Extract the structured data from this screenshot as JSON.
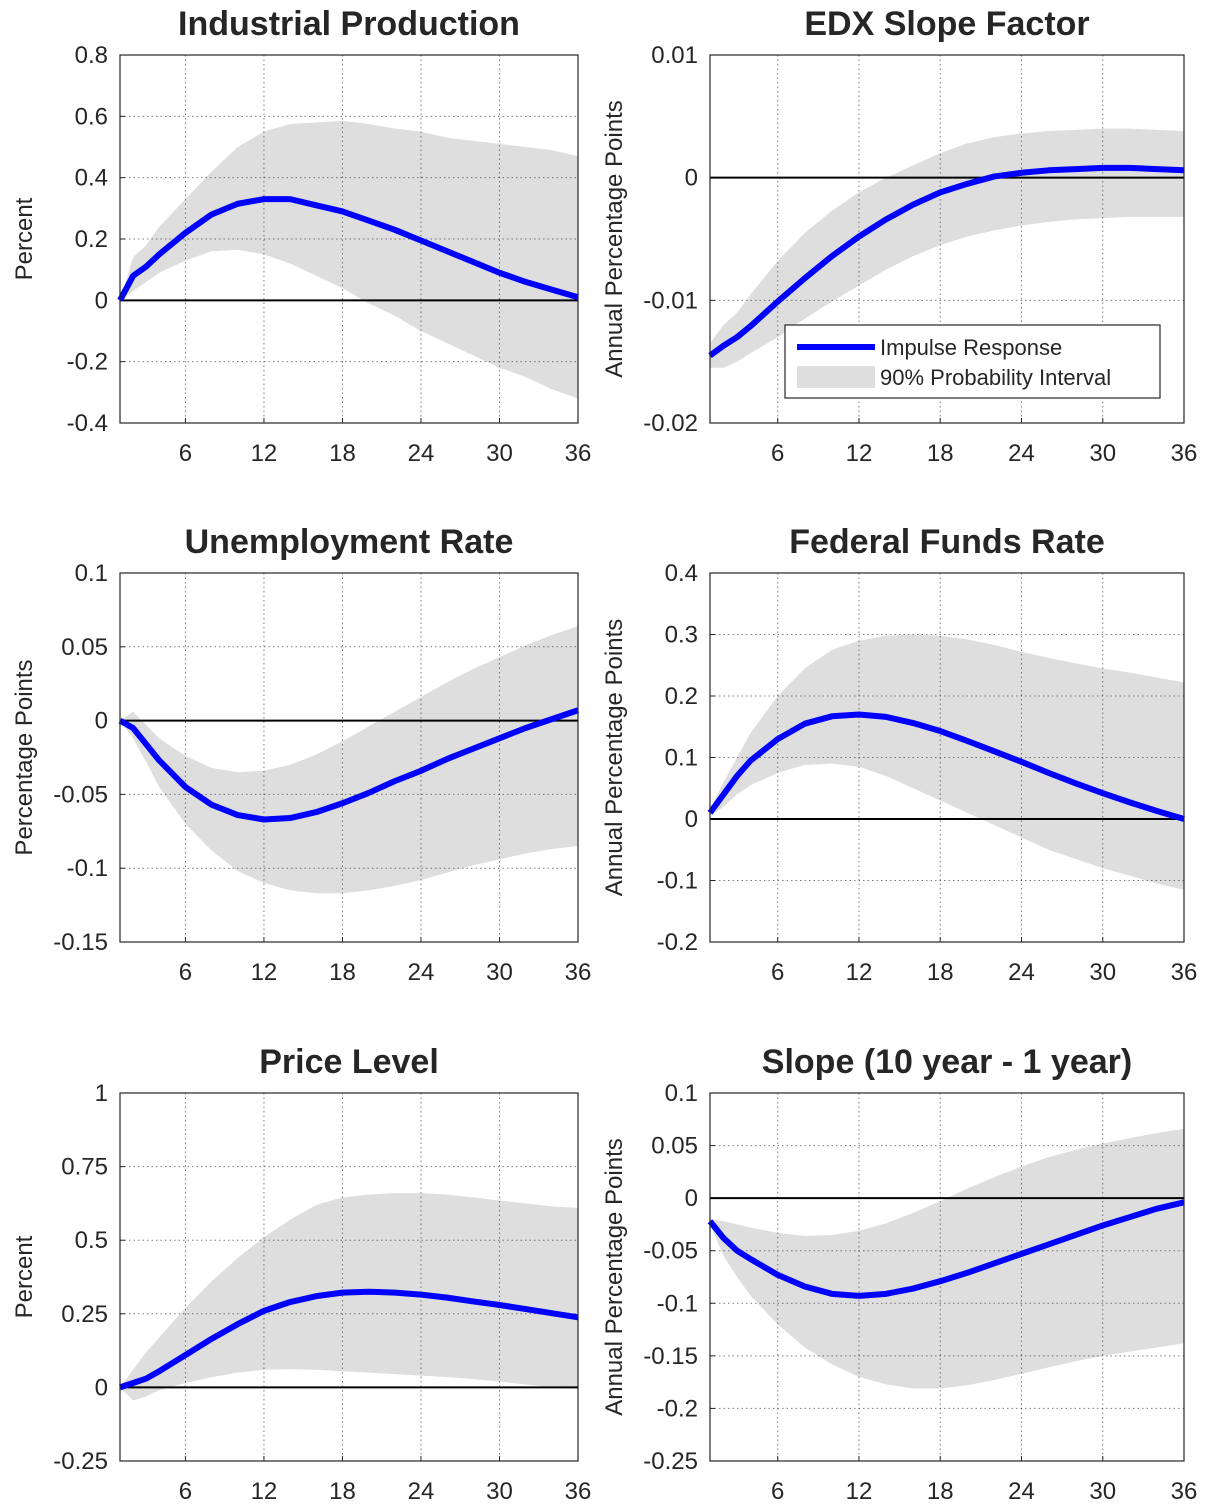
{
  "chart_data": [
    {
      "type": "line",
      "title": "Industrial Production",
      "ylabel": "Percent",
      "x": [
        1,
        2,
        3,
        4,
        6,
        8,
        10,
        12,
        14,
        16,
        18,
        20,
        22,
        24,
        26,
        28,
        30,
        32,
        34,
        36
      ],
      "xlim": [
        1,
        36
      ],
      "xticks": [
        6,
        12,
        18,
        24,
        30,
        36
      ],
      "ylim": [
        -0.4,
        0.8
      ],
      "yticks": [
        -0.4,
        -0.2,
        0,
        0.2,
        0.4,
        0.6,
        0.8
      ],
      "grid": true,
      "hline": 0,
      "band": {
        "color": "#dedede",
        "upper": [
          0,
          0.14,
          0.18,
          0.24,
          0.33,
          0.42,
          0.5,
          0.55,
          0.575,
          0.58,
          0.585,
          0.575,
          0.56,
          0.55,
          0.53,
          0.52,
          0.51,
          0.5,
          0.49,
          0.47
        ],
        "lower": [
          0,
          0.03,
          0.06,
          0.09,
          0.13,
          0.16,
          0.165,
          0.15,
          0.12,
          0.08,
          0.04,
          -0.01,
          -0.05,
          -0.1,
          -0.14,
          -0.18,
          -0.22,
          -0.25,
          -0.29,
          -0.32
        ]
      },
      "series": [
        {
          "color": "#0000ff",
          "values": [
            0,
            0.08,
            0.11,
            0.15,
            0.22,
            0.28,
            0.315,
            0.33,
            0.33,
            0.31,
            0.29,
            0.26,
            0.23,
            0.195,
            0.16,
            0.125,
            0.09,
            0.06,
            0.035,
            0.01
          ]
        }
      ]
    },
    {
      "type": "line",
      "title": "EDX Slope Factor",
      "ylabel": "Annual Percentage Points",
      "x": [
        1,
        2,
        3,
        4,
        6,
        8,
        10,
        12,
        14,
        16,
        18,
        20,
        22,
        24,
        26,
        28,
        30,
        32,
        34,
        36
      ],
      "xlim": [
        1,
        36
      ],
      "xticks": [
        6,
        12,
        18,
        24,
        30,
        36
      ],
      "ylim": [
        -0.02,
        0.01
      ],
      "yticks": [
        -0.02,
        -0.01,
        0,
        0.01
      ],
      "grid": true,
      "hline": 0,
      "legend": "lower right",
      "band": {
        "name": "90% Probability Interval",
        "color": "#dedede",
        "upper": [
          -0.0135,
          -0.012,
          -0.011,
          -0.0095,
          -0.0068,
          -0.0045,
          -0.0027,
          -0.0012,
          0,
          0.001,
          0.002,
          0.0028,
          0.0033,
          0.0036,
          0.0038,
          0.0039,
          0.004,
          0.004,
          0.0039,
          0.0038
        ],
        "lower": [
          -0.0155,
          -0.0155,
          -0.015,
          -0.0143,
          -0.013,
          -0.0115,
          -0.0101,
          -0.0088,
          -0.0075,
          -0.0064,
          -0.0055,
          -0.0048,
          -0.0043,
          -0.0039,
          -0.0036,
          -0.0034,
          -0.0033,
          -0.0032,
          -0.0032,
          -0.0032
        ]
      },
      "series": [
        {
          "name": "Impulse Response",
          "color": "#0000ff",
          "values": [
            -0.0145,
            -0.0137,
            -0.013,
            -0.0121,
            -0.0101,
            -0.0082,
            -0.0064,
            -0.0048,
            -0.0034,
            -0.0022,
            -0.0012,
            -0.0005,
            0.0001,
            0.0004,
            0.0006,
            0.0007,
            0.0008,
            0.0008,
            0.0007,
            0.0006
          ]
        }
      ]
    },
    {
      "type": "line",
      "title": "Unemployment Rate",
      "ylabel": "Percentage Points",
      "x": [
        1,
        2,
        3,
        4,
        6,
        8,
        10,
        12,
        14,
        16,
        18,
        20,
        22,
        24,
        26,
        28,
        30,
        32,
        34,
        36
      ],
      "xlim": [
        1,
        36
      ],
      "xticks": [
        6,
        12,
        18,
        24,
        30,
        36
      ],
      "ylim": [
        -0.15,
        0.1
      ],
      "yticks": [
        -0.15,
        -0.1,
        -0.05,
        0,
        0.05,
        0.1
      ],
      "grid": true,
      "hline": 0,
      "band": {
        "color": "#dedede",
        "upper": [
          0,
          0.006,
          -0.003,
          -0.012,
          -0.024,
          -0.032,
          -0.035,
          -0.034,
          -0.03,
          -0.023,
          -0.014,
          -0.004,
          0.006,
          0.016,
          0.026,
          0.035,
          0.043,
          0.051,
          0.058,
          0.064
        ],
        "lower": [
          0,
          -0.012,
          -0.028,
          -0.045,
          -0.07,
          -0.088,
          -0.102,
          -0.11,
          -0.115,
          -0.117,
          -0.117,
          -0.115,
          -0.112,
          -0.108,
          -0.103,
          -0.098,
          -0.094,
          -0.09,
          -0.087,
          -0.085
        ]
      },
      "series": [
        {
          "color": "#0000ff",
          "values": [
            0,
            -0.005,
            -0.016,
            -0.027,
            -0.045,
            -0.057,
            -0.064,
            -0.067,
            -0.066,
            -0.062,
            -0.056,
            -0.049,
            -0.041,
            -0.034,
            -0.026,
            -0.019,
            -0.012,
            -0.005,
            0.001,
            0.007
          ]
        }
      ]
    },
    {
      "type": "line",
      "title": "Federal Funds Rate",
      "ylabel": "Annual Percentage Points",
      "x": [
        1,
        2,
        3,
        4,
        6,
        8,
        10,
        12,
        14,
        16,
        18,
        20,
        22,
        24,
        26,
        28,
        30,
        32,
        34,
        36
      ],
      "xlim": [
        1,
        36
      ],
      "xticks": [
        6,
        12,
        18,
        24,
        30,
        36
      ],
      "ylim": [
        -0.2,
        0.4
      ],
      "yticks": [
        -0.2,
        -0.1,
        0,
        0.1,
        0.2,
        0.3,
        0.4
      ],
      "grid": true,
      "hline": 0,
      "band": {
        "color": "#dedede",
        "upper": [
          0.015,
          0.06,
          0.1,
          0.14,
          0.2,
          0.245,
          0.275,
          0.29,
          0.298,
          0.3,
          0.298,
          0.292,
          0.283,
          0.272,
          0.262,
          0.253,
          0.245,
          0.238,
          0.23,
          0.222
        ],
        "lower": [
          0.005,
          0.02,
          0.04,
          0.055,
          0.075,
          0.088,
          0.09,
          0.085,
          0.07,
          0.05,
          0.03,
          0.01,
          -0.01,
          -0.03,
          -0.05,
          -0.065,
          -0.08,
          -0.092,
          -0.105,
          -0.115
        ]
      },
      "series": [
        {
          "color": "#0000ff",
          "values": [
            0.01,
            0.04,
            0.07,
            0.095,
            0.13,
            0.155,
            0.167,
            0.17,
            0.166,
            0.156,
            0.143,
            0.127,
            0.11,
            0.093,
            0.075,
            0.058,
            0.042,
            0.027,
            0.013,
            0
          ]
        }
      ]
    },
    {
      "type": "line",
      "title": "Price Level",
      "ylabel": "Percent",
      "x": [
        1,
        2,
        3,
        4,
        6,
        8,
        10,
        12,
        14,
        16,
        18,
        20,
        22,
        24,
        26,
        28,
        30,
        32,
        34,
        36
      ],
      "xlim": [
        1,
        36
      ],
      "xticks": [
        6,
        12,
        18,
        24,
        30,
        36
      ],
      "ylim": [
        -0.25,
        1
      ],
      "yticks": [
        -0.25,
        0,
        0.25,
        0.5,
        0.75,
        1
      ],
      "grid": true,
      "hline": 0,
      "band": {
        "color": "#dedede",
        "upper": [
          0,
          0.06,
          0.12,
          0.17,
          0.27,
          0.36,
          0.44,
          0.51,
          0.57,
          0.62,
          0.645,
          0.655,
          0.66,
          0.66,
          0.655,
          0.645,
          0.635,
          0.625,
          0.615,
          0.61
        ],
        "lower": [
          0,
          -0.045,
          -0.03,
          -0.01,
          0.015,
          0.035,
          0.05,
          0.06,
          0.062,
          0.06,
          0.055,
          0.05,
          0.045,
          0.04,
          0.035,
          0.028,
          0.02,
          0.01,
          0,
          -0.005
        ]
      },
      "series": [
        {
          "color": "#0000ff",
          "values": [
            0,
            0.015,
            0.03,
            0.055,
            0.11,
            0.165,
            0.215,
            0.26,
            0.29,
            0.31,
            0.322,
            0.325,
            0.322,
            0.315,
            0.305,
            0.292,
            0.28,
            0.266,
            0.252,
            0.238
          ]
        }
      ]
    },
    {
      "type": "line",
      "title": "Slope (10 year - 1 year)",
      "ylabel": "Annual Percentage Points",
      "x": [
        1,
        2,
        3,
        4,
        6,
        8,
        10,
        12,
        14,
        16,
        18,
        20,
        22,
        24,
        26,
        28,
        30,
        32,
        34,
        36
      ],
      "xlim": [
        1,
        36
      ],
      "xticks": [
        6,
        12,
        18,
        24,
        30,
        36
      ],
      "ylim": [
        -0.25,
        0.1
      ],
      "yticks": [
        -0.25,
        -0.2,
        -0.15,
        -0.1,
        -0.05,
        0,
        0.05,
        0.1
      ],
      "grid": true,
      "hline": 0,
      "band": {
        "color": "#dedede",
        "upper": [
          -0.02,
          -0.022,
          -0.025,
          -0.028,
          -0.033,
          -0.036,
          -0.035,
          -0.031,
          -0.024,
          -0.014,
          -0.003,
          0.009,
          0.02,
          0.03,
          0.039,
          0.046,
          0.052,
          0.057,
          0.062,
          0.066
        ],
        "lower": [
          -0.025,
          -0.055,
          -0.075,
          -0.093,
          -0.12,
          -0.142,
          -0.158,
          -0.17,
          -0.177,
          -0.181,
          -0.181,
          -0.178,
          -0.173,
          -0.167,
          -0.161,
          -0.155,
          -0.15,
          -0.146,
          -0.142,
          -0.138
        ]
      },
      "series": [
        {
          "color": "#0000ff",
          "values": [
            -0.022,
            -0.038,
            -0.05,
            -0.058,
            -0.073,
            -0.084,
            -0.091,
            -0.093,
            -0.091,
            -0.086,
            -0.079,
            -0.071,
            -0.062,
            -0.053,
            -0.044,
            -0.035,
            -0.026,
            -0.018,
            -0.01,
            -0.004
          ]
        }
      ]
    }
  ]
}
